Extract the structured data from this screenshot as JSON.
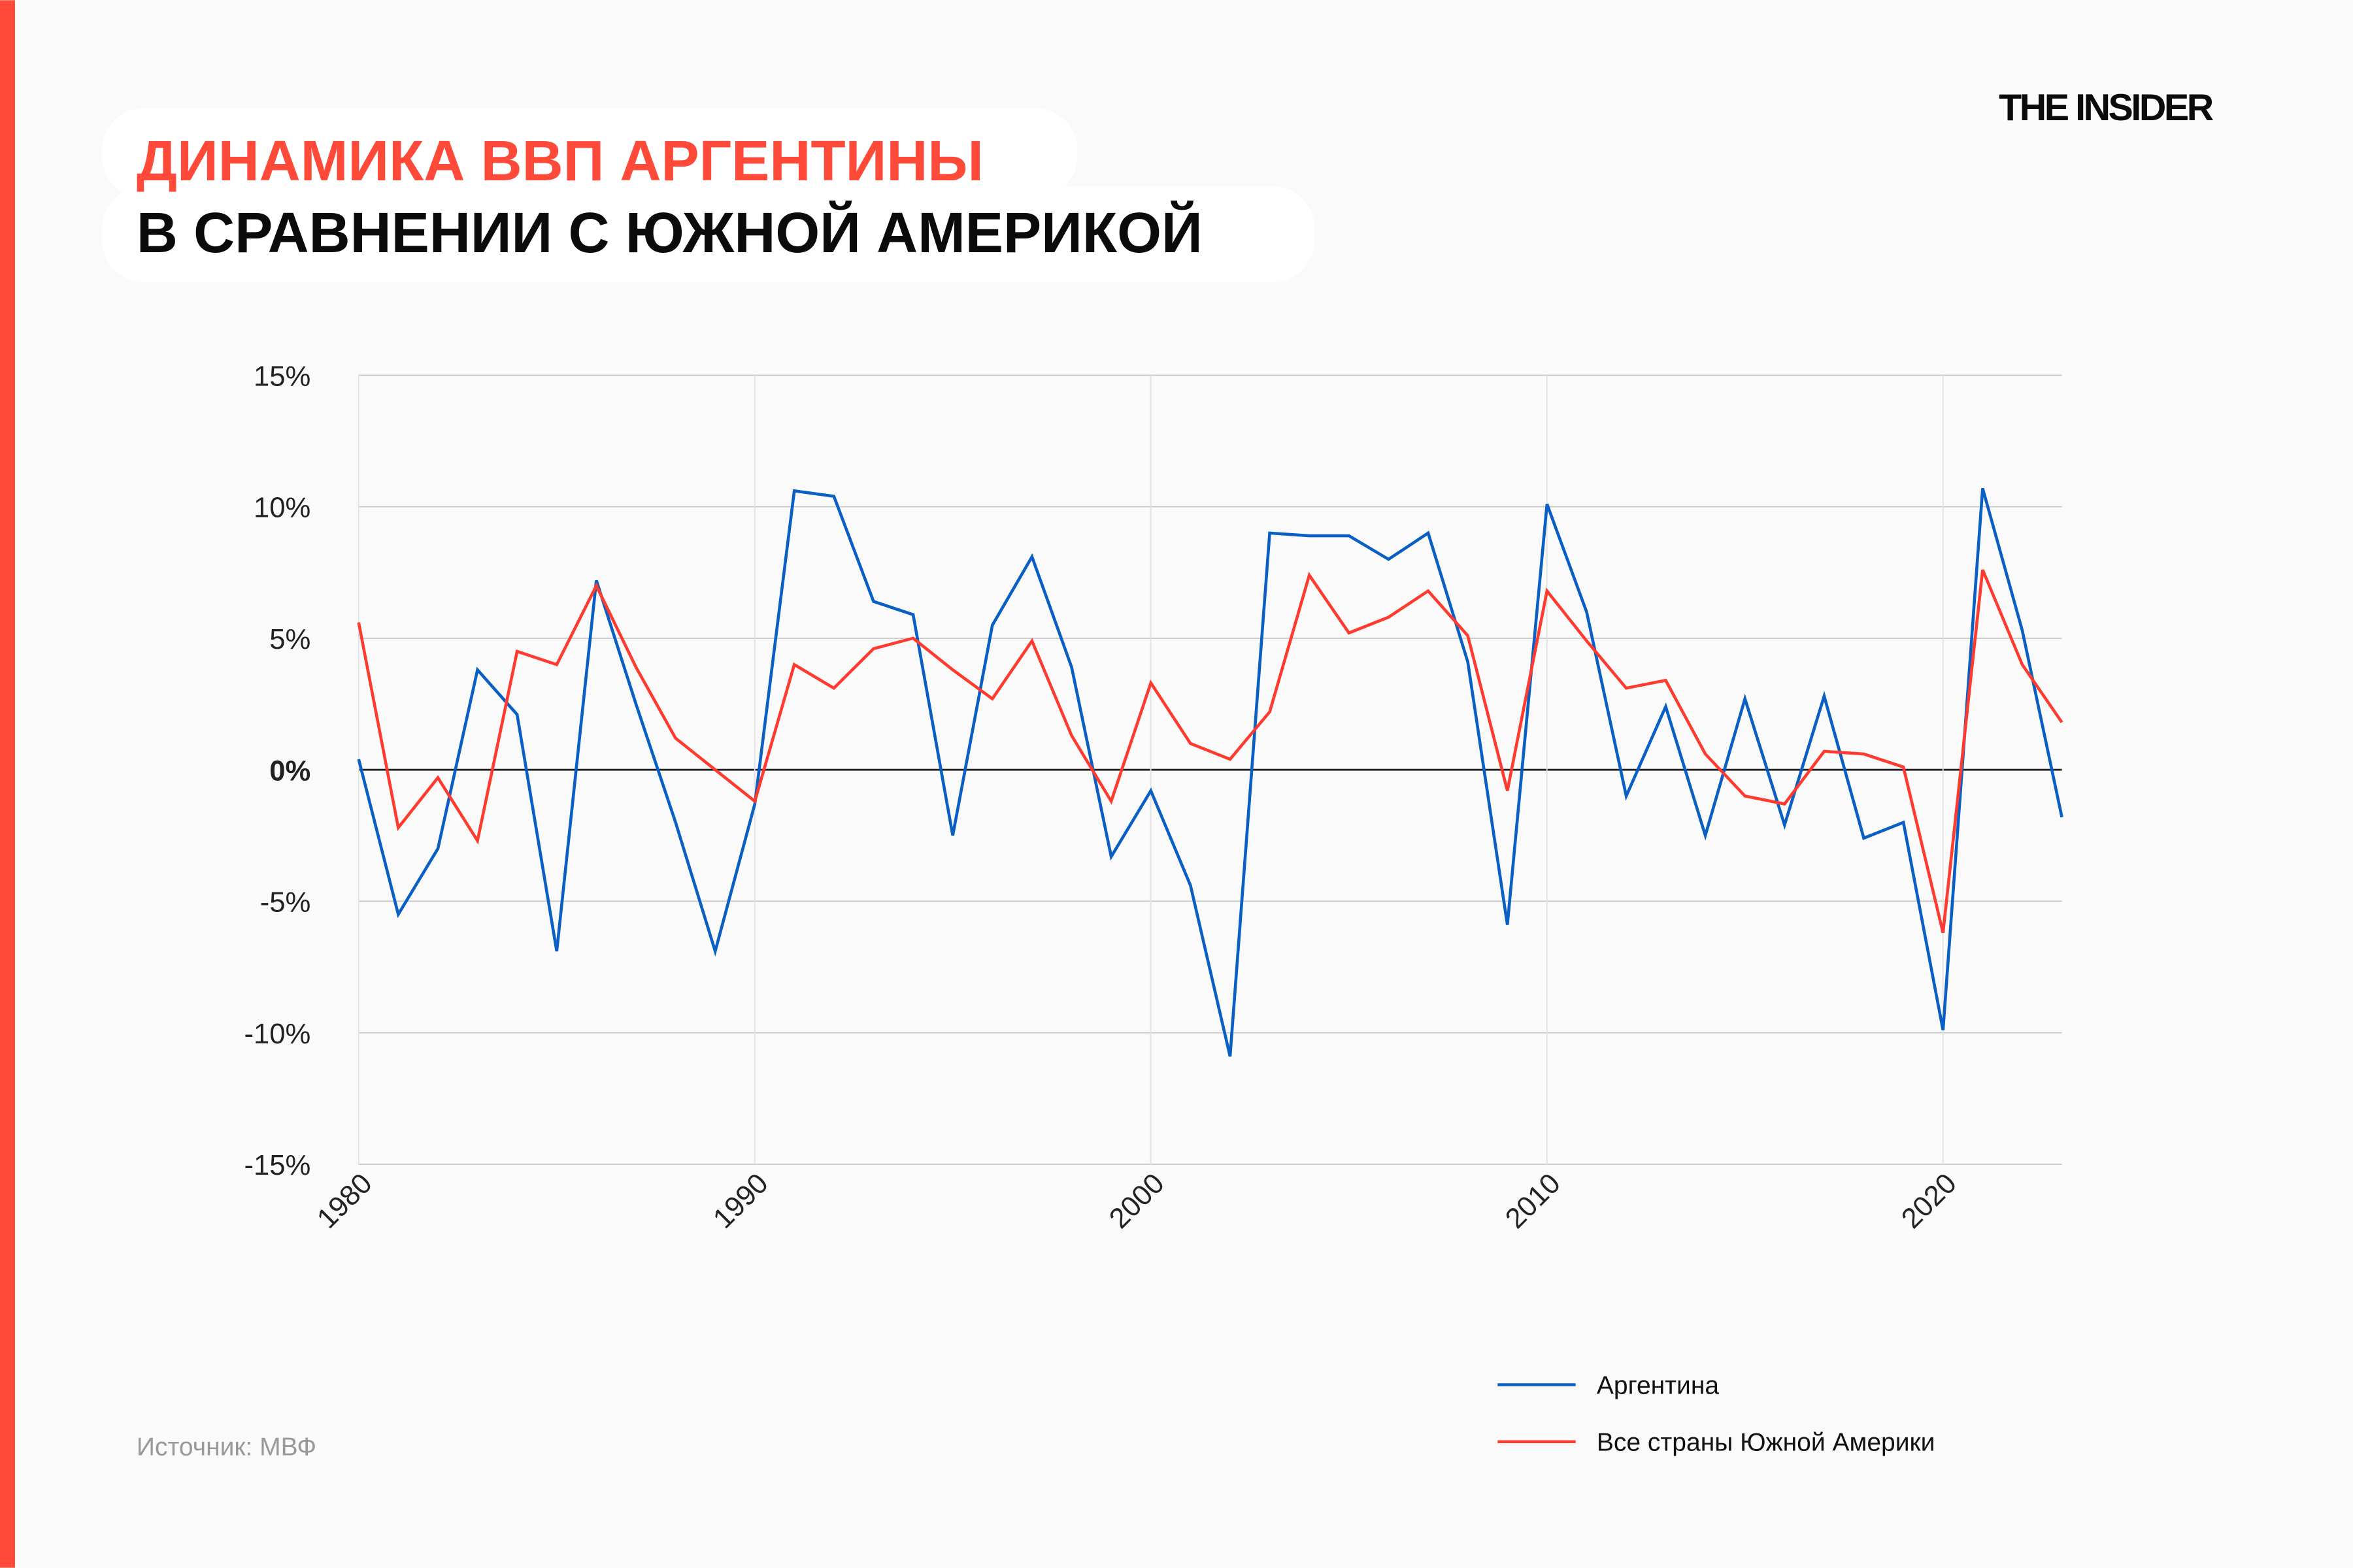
{
  "header": {
    "title_line1": "ДИНАМИКА ВВП АРГЕНТИНЫ",
    "title_line2": "В СРАВНЕНИИ С ЮЖНОЙ АМЕРИКОЙ",
    "logo": "THE INSIDER"
  },
  "source": "Источник: МВФ",
  "colors": {
    "accent": "#ff4a3a",
    "argentina": "#0a5fc4",
    "south_america": "#ff3b2f"
  },
  "chart_data": {
    "type": "line",
    "title": "ДИНАМИКА ВВП АРГЕНТИНЫ В СРАВНЕНИИ С ЮЖНОЙ АМЕРИКОЙ",
    "xlabel": "",
    "ylabel": "",
    "xlim": [
      1980,
      2023
    ],
    "ylim": [
      -15,
      15
    ],
    "x_ticks": [
      "1980",
      "1990",
      "2000",
      "2010",
      "2020"
    ],
    "y_ticks": [
      "15%",
      "10%",
      "5%",
      "0%",
      "-5%",
      "-10%",
      "-15%"
    ],
    "grid": true,
    "legend_position": "bottom-right",
    "x": [
      1980,
      1981,
      1982,
      1983,
      1984,
      1985,
      1986,
      1987,
      1988,
      1989,
      1990,
      1991,
      1992,
      1993,
      1994,
      1995,
      1996,
      1997,
      1998,
      1999,
      2000,
      2001,
      2002,
      2003,
      2004,
      2005,
      2006,
      2007,
      2008,
      2009,
      2010,
      2011,
      2012,
      2013,
      2014,
      2015,
      2016,
      2017,
      2018,
      2019,
      2020,
      2021,
      2022,
      2023
    ],
    "series": [
      {
        "name": "Аргентина",
        "color": "#0a5fc4",
        "values": [
          0.4,
          -5.5,
          -3.0,
          3.8,
          2.1,
          -6.9,
          7.2,
          2.5,
          -2.0,
          -6.9,
          -1.3,
          10.6,
          10.4,
          6.4,
          5.9,
          -2.5,
          5.5,
          8.1,
          3.9,
          -3.3,
          -0.8,
          -4.4,
          -10.9,
          9.0,
          8.9,
          8.9,
          8.0,
          9.0,
          4.1,
          -5.9,
          10.1,
          6.0,
          -1.0,
          2.4,
          -2.5,
          2.7,
          -2.1,
          2.8,
          -2.6,
          -2.0,
          -9.9,
          10.7,
          5.3,
          -1.8
        ]
      },
      {
        "name": "Все страны Южной Америки",
        "color": "#ff3b2f",
        "values": [
          5.6,
          -2.2,
          -0.3,
          -2.7,
          4.5,
          4.0,
          7.0,
          3.9,
          1.2,
          0.0,
          -1.2,
          4.0,
          3.1,
          4.6,
          5.0,
          3.8,
          2.7,
          4.9,
          1.3,
          -1.2,
          3.3,
          1.0,
          0.4,
          2.2,
          7.4,
          5.2,
          5.8,
          6.8,
          5.1,
          -0.8,
          6.8,
          4.9,
          3.1,
          3.4,
          0.6,
          -1.0,
          -1.3,
          0.7,
          0.6,
          0.1,
          -6.2,
          7.6,
          4.0,
          1.8
        ]
      }
    ]
  }
}
